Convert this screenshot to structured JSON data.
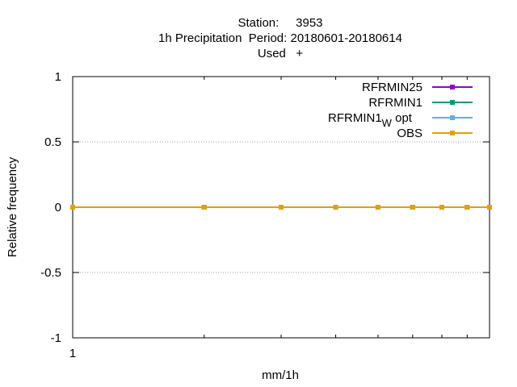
{
  "chart_data": {
    "type": "line",
    "title_lines": [
      "Station:     3953",
      "1h Precipitation  Period: 20180601-20180614",
      "Used   +"
    ],
    "xlabel": "mm/1h",
    "ylabel": "Relative frequency",
    "x_scale": "log",
    "x_tick_labels": [
      "1"
    ],
    "yticks": [
      1,
      0.5,
      0,
      -0.5,
      -1
    ],
    "ytick_labels": [
      "1",
      "0.5",
      "0",
      "-0.5",
      "-1"
    ],
    "ylim": [
      -1,
      1
    ],
    "grid": "horizontal dotted",
    "legend_position": "top-right",
    "x": [
      1,
      2,
      3,
      4,
      5,
      6,
      7,
      8,
      9
    ],
    "series": [
      {
        "name": "RFRMIN25",
        "color": "#9400d3",
        "values": [
          0,
          0,
          0,
          0,
          0,
          0,
          0,
          0,
          0
        ]
      },
      {
        "name": "RFRMIN1",
        "color": "#009e73",
        "values": [
          0,
          0,
          0,
          0,
          0,
          0,
          0,
          0,
          0
        ]
      },
      {
        "name": "RFRMIN1",
        "subscript": "W",
        "suffix": " opt",
        "color": "#56b4e9",
        "values": [
          0,
          0,
          0,
          0,
          0,
          0,
          0,
          0,
          0
        ]
      },
      {
        "name": "OBS",
        "color": "#e69f00",
        "values": [
          0,
          0,
          0,
          0,
          0,
          0,
          0,
          0,
          0
        ]
      }
    ]
  }
}
